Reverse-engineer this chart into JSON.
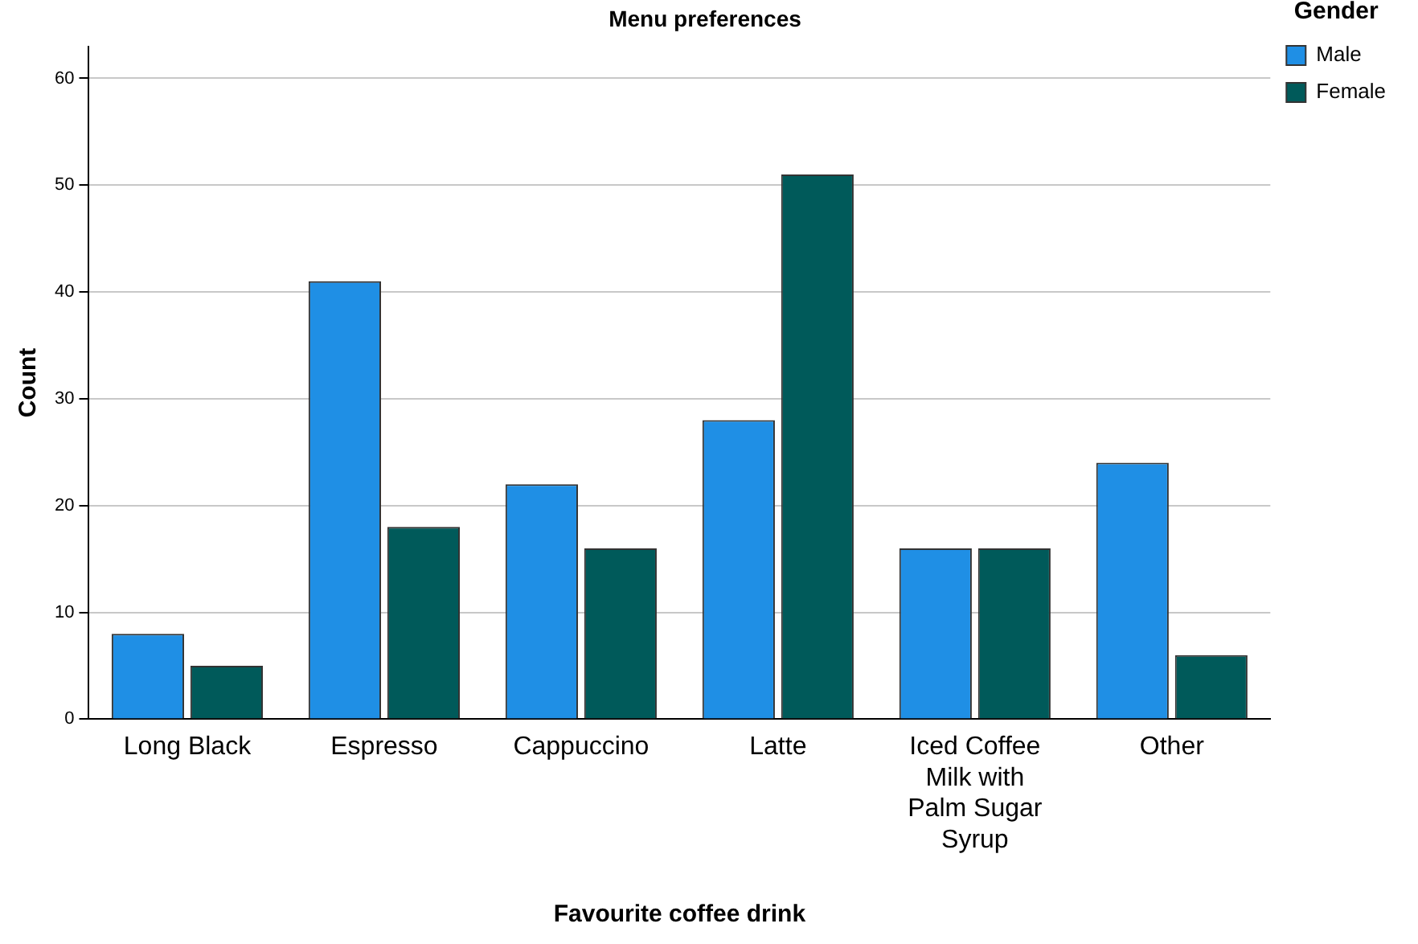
{
  "chart_data": {
    "type": "bar",
    "title": "Menu preferences",
    "xlabel": "Favourite coffee drink",
    "ylabel": "Count",
    "legend_title": "Gender",
    "categories": [
      "Long Black",
      "Espresso",
      "Cappuccino",
      "Latte",
      "Iced Coffee Milk with Palm Sugar Syrup",
      "Other"
    ],
    "series": [
      {
        "name": "Male",
        "color": "#1f8fe5",
        "values": [
          8,
          41,
          22,
          28,
          16,
          24
        ]
      },
      {
        "name": "Female",
        "color": "#005a5a",
        "values": [
          5,
          18,
          16,
          51,
          16,
          6
        ]
      }
    ],
    "ylim": [
      0,
      63
    ],
    "yticks": [
      0,
      10,
      20,
      30,
      40,
      50,
      60
    ],
    "grid": "y",
    "legend": "top right"
  }
}
